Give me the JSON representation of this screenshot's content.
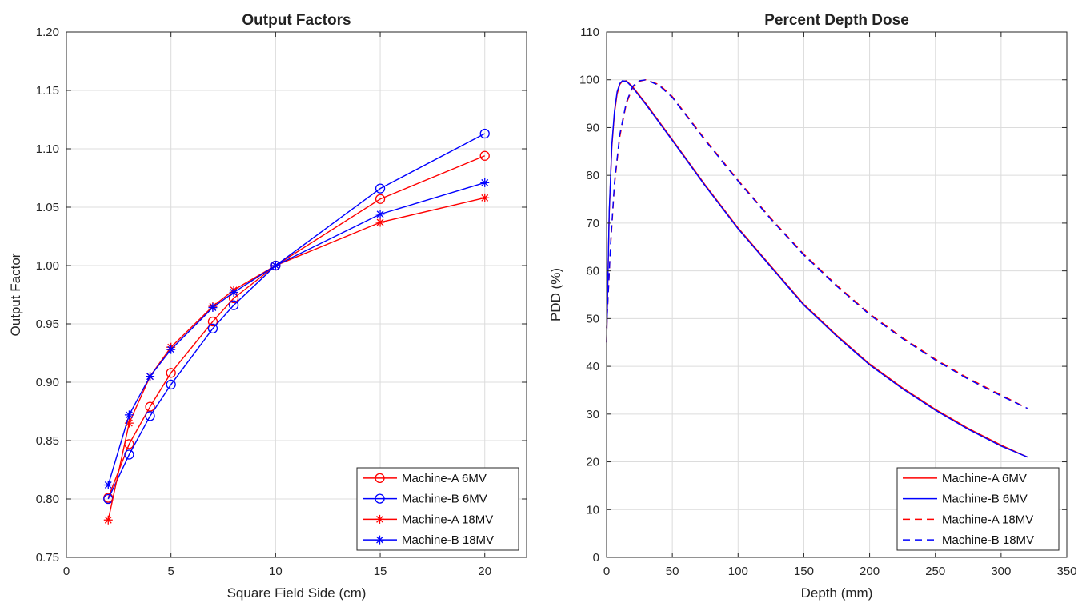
{
  "colors": {
    "machine_a": "#ff0000",
    "machine_b": "#0000ff",
    "grid": "#dcdcdc",
    "axis": "#262626"
  },
  "chart_data": [
    {
      "type": "line",
      "title": "Output Factors",
      "xlabel": "Square Field Side (cm)",
      "ylabel": "Output Factor",
      "xlim": [
        0,
        22
      ],
      "ylim": [
        0.75,
        1.2
      ],
      "xticks": [
        0,
        5,
        10,
        15,
        20
      ],
      "yticks": [
        0.75,
        0.8,
        0.85,
        0.9,
        0.95,
        1.0,
        1.05,
        1.1,
        1.15,
        1.2
      ],
      "xtick_labels": [
        "0",
        "5",
        "10",
        "15",
        "20"
      ],
      "ytick_labels": [
        "0.75",
        "0.80",
        "0.85",
        "0.90",
        "0.95",
        "1.00",
        "1.05",
        "1.10",
        "1.15",
        "1.20"
      ],
      "grid": true,
      "legend_position": "bottom-right",
      "series": [
        {
          "name": "Machine-A 6MV",
          "color": "#ff0000",
          "marker": "circle",
          "line": "solid",
          "x": [
            2,
            3,
            4,
            5,
            7,
            8,
            10,
            15,
            20
          ],
          "y": [
            0.801,
            0.847,
            0.879,
            0.908,
            0.952,
            0.972,
            1.0,
            1.057,
            1.094
          ]
        },
        {
          "name": "Machine-B 6MV",
          "color": "#0000ff",
          "marker": "circle",
          "line": "solid",
          "x": [
            2,
            3,
            4,
            5,
            7,
            8,
            10,
            15,
            20
          ],
          "y": [
            0.8,
            0.838,
            0.871,
            0.898,
            0.946,
            0.966,
            1.0,
            1.066,
            1.113
          ]
        },
        {
          "name": "Machine-A 18MV",
          "color": "#ff0000",
          "marker": "asterisk",
          "line": "solid",
          "x": [
            2,
            3,
            4,
            5,
            7,
            8,
            10,
            15,
            20
          ],
          "y": [
            0.782,
            0.865,
            0.905,
            0.93,
            0.965,
            0.979,
            1.0,
            1.037,
            1.058
          ]
        },
        {
          "name": "Machine-B 18MV",
          "color": "#0000ff",
          "marker": "asterisk",
          "line": "solid",
          "x": [
            2,
            3,
            4,
            5,
            7,
            8,
            10,
            15,
            20
          ],
          "y": [
            0.812,
            0.872,
            0.905,
            0.928,
            0.964,
            0.977,
            1.0,
            1.044,
            1.071
          ]
        }
      ]
    },
    {
      "type": "line",
      "title": "Percent Depth Dose",
      "xlabel": "Depth (mm)",
      "ylabel": "PDD (%)",
      "xlim": [
        0,
        350
      ],
      "ylim": [
        0,
        110
      ],
      "xticks": [
        0,
        50,
        100,
        150,
        200,
        250,
        300,
        350
      ],
      "yticks": [
        0,
        10,
        20,
        30,
        40,
        50,
        60,
        70,
        80,
        90,
        100,
        110
      ],
      "xtick_labels": [
        "0",
        "50",
        "100",
        "150",
        "200",
        "250",
        "300",
        "350"
      ],
      "ytick_labels": [
        "0",
        "10",
        "20",
        "30",
        "40",
        "50",
        "60",
        "70",
        "80",
        "90",
        "100",
        "110"
      ],
      "grid": true,
      "legend_position": "bottom-right",
      "series": [
        {
          "name": "Machine-A 6MV",
          "color": "#ff0000",
          "line": "solid",
          "x": [
            0,
            2,
            4,
            6,
            8,
            10,
            12,
            15,
            20,
            30,
            50,
            75,
            100,
            125,
            150,
            175,
            200,
            225,
            250,
            275,
            300,
            320
          ],
          "y": [
            45,
            72,
            86,
            93,
            97,
            99,
            99.7,
            99.8,
            98.5,
            95,
            87.5,
            78,
            69,
            61,
            53,
            46.5,
            40.5,
            35.5,
            31,
            27,
            23.5,
            21
          ]
        },
        {
          "name": "Machine-B 6MV",
          "color": "#0000ff",
          "line": "solid",
          "x": [
            0,
            2,
            4,
            6,
            8,
            10,
            12,
            15,
            20,
            30,
            50,
            75,
            100,
            125,
            150,
            175,
            200,
            225,
            250,
            275,
            300,
            320
          ],
          "y": [
            45,
            72.5,
            86.5,
            93.5,
            97.5,
            99.2,
            99.8,
            99.7,
            98.3,
            94.8,
            87.3,
            77.8,
            68.8,
            60.8,
            52.8,
            46.3,
            40.3,
            35.3,
            30.8,
            26.8,
            23.3,
            21
          ]
        },
        {
          "name": "Machine-A 18MV",
          "color": "#ff0000",
          "line": "dashed",
          "x": [
            0,
            3,
            6,
            10,
            15,
            20,
            25,
            30,
            40,
            50,
            75,
            100,
            125,
            150,
            175,
            200,
            225,
            250,
            275,
            300,
            320
          ],
          "y": [
            48,
            65,
            78,
            88,
            95,
            98.5,
            99.7,
            100,
            99,
            96.5,
            87.5,
            79,
            71,
            63.5,
            57,
            51,
            46,
            41.5,
            37.5,
            34,
            31.2
          ]
        },
        {
          "name": "Machine-B 18MV",
          "color": "#0000ff",
          "line": "dashed",
          "x": [
            0,
            3,
            6,
            10,
            15,
            20,
            25,
            30,
            40,
            50,
            75,
            100,
            125,
            150,
            175,
            200,
            225,
            250,
            275,
            300,
            320
          ],
          "y": [
            48,
            65.5,
            78.5,
            88.5,
            95.3,
            98.7,
            99.8,
            100,
            98.8,
            96.3,
            87.3,
            78.8,
            70.8,
            63.3,
            56.8,
            50.8,
            45.8,
            41.3,
            37.3,
            33.8,
            31.2
          ]
        }
      ]
    }
  ]
}
